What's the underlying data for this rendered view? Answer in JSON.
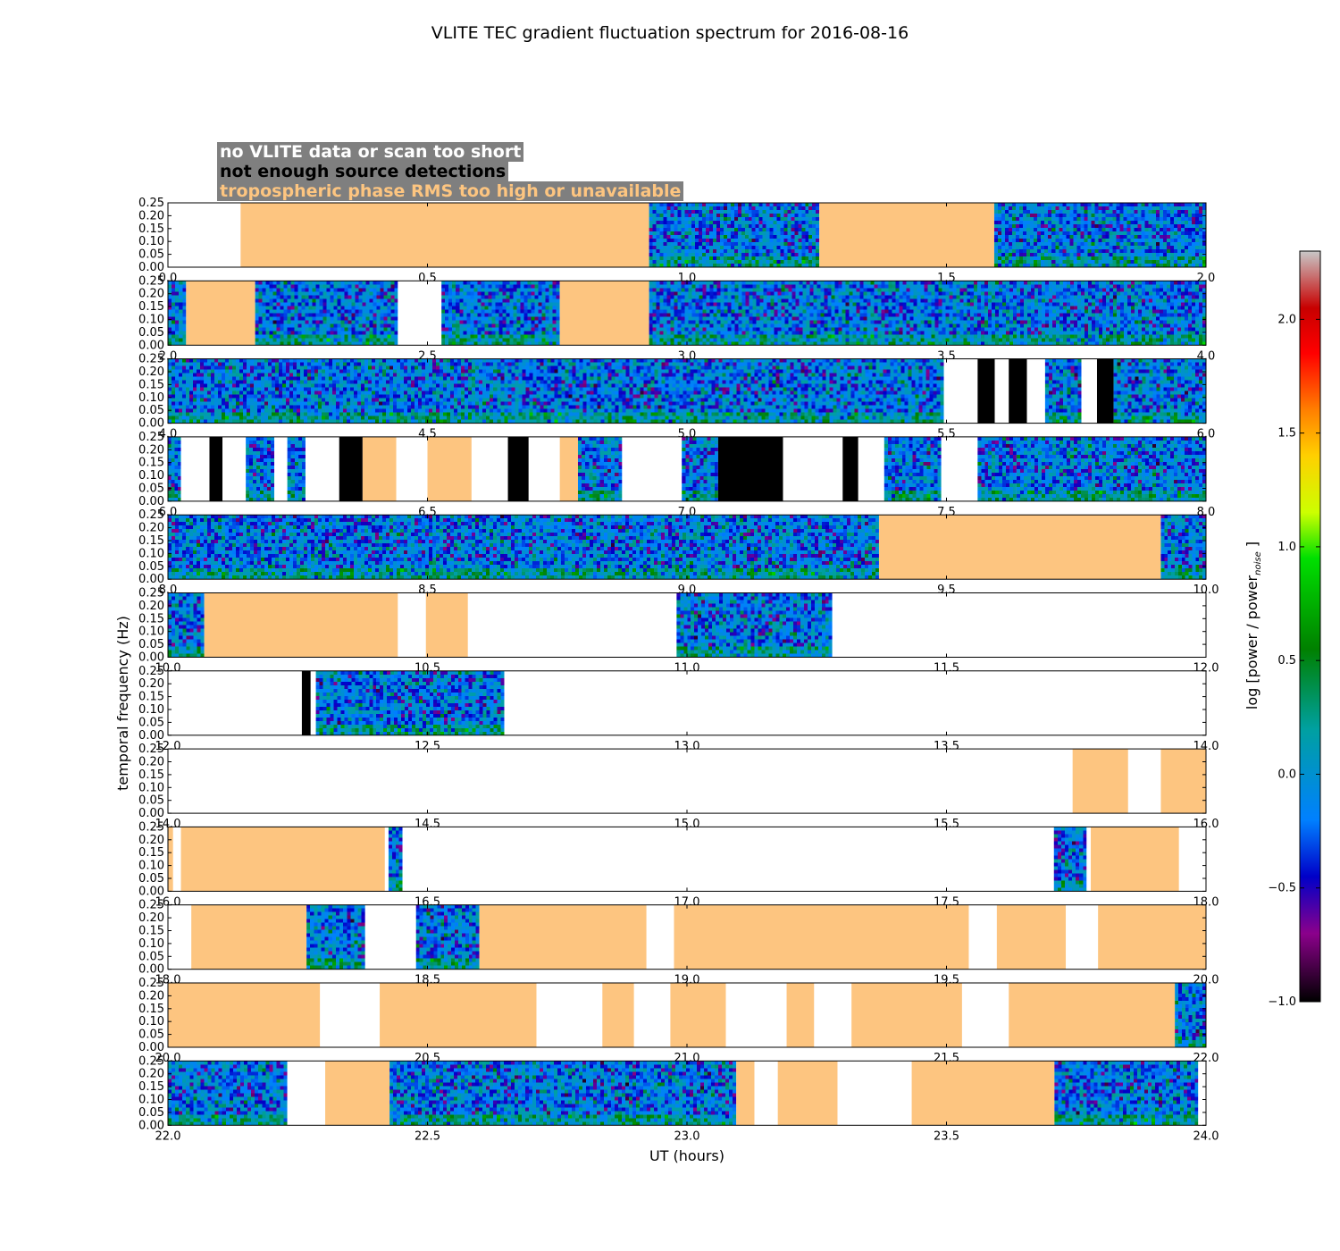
{
  "chart_data": {
    "type": "heatmap",
    "title": "VLITE TEC gradient fluctuation spectrum for 2016-08-16",
    "xlabel": "UT (hours)",
    "ylabel": "temporal frequency (Hz)",
    "ylim": [
      0,
      0.25
    ],
    "yticks": [
      "0.00",
      "0.05",
      "0.10",
      "0.15",
      "0.20",
      "0.25"
    ],
    "colorbar": {
      "label": "log [power / power",
      "label_subscript": "noise",
      "label_end": "]",
      "range": [
        -1.0,
        2.3
      ],
      "ticks": [
        "-1.0",
        "-0.5",
        "0.0",
        "0.5",
        "1.0",
        "1.5",
        "2.0"
      ],
      "tick_values": [
        -1.0,
        -0.5,
        0.0,
        0.5,
        1.0,
        1.5,
        2.0
      ],
      "colors": [
        "#000000",
        "#8b008b",
        "#0000c8",
        "#0080ff",
        "#00a0a0",
        "#008000",
        "#00e000",
        "#ccff00",
        "#ffd000",
        "#ff8000",
        "#ff0000",
        "#c80000",
        "#c8c8c8"
      ],
      "color_stops": [
        -1.0,
        -0.7,
        -0.45,
        -0.2,
        0.2,
        0.55,
        0.95,
        1.15,
        1.4,
        1.6,
        1.85,
        2.05,
        2.3
      ]
    },
    "legend": {
      "placement": "top-left",
      "entries": [
        {
          "label": "no VLITE data or scan too short",
          "color": "#ffffff"
        },
        {
          "label": "not enough source detections",
          "color": "#000000"
        },
        {
          "label": "tropospheric phase RMS too high or unavailable",
          "color": "#fdc580"
        }
      ]
    },
    "flag_colors": {
      "none": "#ffffff",
      "det": "#000000",
      "trop": "#fdc580"
    },
    "panels": [
      {
        "xlim": [
          0,
          2
        ],
        "xticks": [
          "0.0",
          "0.5",
          "1.0",
          "1.5",
          "2.0"
        ],
        "segments": [
          [
            0.0,
            0.14,
            "none"
          ],
          [
            0.14,
            0.927,
            "trop"
          ],
          [
            0.927,
            1.255,
            "data"
          ],
          [
            1.255,
            1.592,
            "trop"
          ],
          [
            1.592,
            2.0,
            "data"
          ]
        ]
      },
      {
        "xlim": [
          2,
          4
        ],
        "xticks": [
          "2.0",
          "2.5",
          "3.0",
          "3.5",
          "4.0"
        ],
        "segments": [
          [
            2.0,
            2.035,
            "data"
          ],
          [
            2.035,
            2.168,
            "trop"
          ],
          [
            2.168,
            2.443,
            "data"
          ],
          [
            2.443,
            2.527,
            "none"
          ],
          [
            2.527,
            2.755,
            "data"
          ],
          [
            2.755,
            2.927,
            "trop"
          ],
          [
            2.927,
            4.0,
            "data"
          ]
        ]
      },
      {
        "xlim": [
          4,
          6
        ],
        "xticks": [
          "4.0",
          "4.5",
          "5.0",
          "5.5",
          "6.0"
        ],
        "segments": [
          [
            4.0,
            5.495,
            "data"
          ],
          [
            5.495,
            5.56,
            "none"
          ],
          [
            5.56,
            5.593,
            "det"
          ],
          [
            5.593,
            5.62,
            "none"
          ],
          [
            5.62,
            5.655,
            "det"
          ],
          [
            5.655,
            5.69,
            "none"
          ],
          [
            5.69,
            5.76,
            "data"
          ],
          [
            5.76,
            5.79,
            "none"
          ],
          [
            5.79,
            5.822,
            "det"
          ],
          [
            5.822,
            6.0,
            "data"
          ]
        ]
      },
      {
        "xlim": [
          6,
          8
        ],
        "xticks": [
          "6.0",
          "6.5",
          "7.0",
          "7.5",
          "8.0"
        ],
        "segments": [
          [
            6.0,
            6.025,
            "data"
          ],
          [
            6.025,
            6.08,
            "none"
          ],
          [
            6.08,
            6.105,
            "det"
          ],
          [
            6.105,
            6.15,
            "none"
          ],
          [
            6.15,
            6.205,
            "data"
          ],
          [
            6.205,
            6.23,
            "none"
          ],
          [
            6.23,
            6.265,
            "data"
          ],
          [
            6.265,
            6.33,
            "none"
          ],
          [
            6.33,
            6.375,
            "det"
          ],
          [
            6.375,
            6.44,
            "trop"
          ],
          [
            6.44,
            6.5,
            "none"
          ],
          [
            6.5,
            6.585,
            "trop"
          ],
          [
            6.585,
            6.655,
            "none"
          ],
          [
            6.655,
            6.695,
            "det"
          ],
          [
            6.695,
            6.755,
            "none"
          ],
          [
            6.755,
            6.79,
            "trop"
          ],
          [
            6.79,
            6.875,
            "data"
          ],
          [
            6.875,
            6.99,
            "none"
          ],
          [
            6.99,
            7.06,
            "data"
          ],
          [
            7.06,
            7.185,
            "det"
          ],
          [
            7.185,
            7.3,
            "none"
          ],
          [
            7.3,
            7.33,
            "det"
          ],
          [
            7.33,
            7.38,
            "none"
          ],
          [
            7.38,
            7.49,
            "data"
          ],
          [
            7.49,
            7.56,
            "none"
          ],
          [
            7.56,
            7.635,
            "data"
          ],
          [
            7.635,
            8.0,
            "data"
          ]
        ]
      },
      {
        "xlim": [
          8,
          10
        ],
        "xticks": [
          "8.0",
          "8.5",
          "9.0",
          "9.5",
          "10.0"
        ],
        "segments": [
          [
            8.0,
            9.37,
            "data"
          ],
          [
            9.37,
            9.913,
            "trop"
          ],
          [
            9.913,
            10.0,
            "data"
          ]
        ]
      },
      {
        "xlim": [
          10,
          12
        ],
        "xticks": [
          "10.0",
          "10.5",
          "11.0",
          "11.5",
          "12.0"
        ],
        "segments": [
          [
            10.0,
            10.07,
            "data"
          ],
          [
            10.07,
            10.443,
            "trop"
          ],
          [
            10.443,
            10.497,
            "none"
          ],
          [
            10.497,
            10.578,
            "trop"
          ],
          [
            10.578,
            10.98,
            "none"
          ],
          [
            10.98,
            11.28,
            "data"
          ],
          [
            11.28,
            12.0,
            "none"
          ]
        ]
      },
      {
        "xlim": [
          12,
          14
        ],
        "xticks": [
          "12.0",
          "12.5",
          "13.0",
          "13.5",
          "14.0"
        ],
        "segments": [
          [
            12.0,
            12.258,
            "none"
          ],
          [
            12.258,
            12.275,
            "det"
          ],
          [
            12.275,
            12.285,
            "none"
          ],
          [
            12.285,
            12.648,
            "data"
          ],
          [
            12.648,
            14.0,
            "none"
          ]
        ]
      },
      {
        "xlim": [
          14,
          16
        ],
        "xticks": [
          "14.0",
          "14.5",
          "15.0",
          "15.5",
          "16.0"
        ],
        "segments": [
          [
            14.0,
            15.743,
            "none"
          ],
          [
            15.743,
            15.85,
            "trop"
          ],
          [
            15.85,
            15.913,
            "none"
          ],
          [
            15.913,
            16.0,
            "trop"
          ]
        ]
      },
      {
        "xlim": [
          16,
          18
        ],
        "xticks": [
          "16.0",
          "16.5",
          "17.0",
          "17.5",
          "18.0"
        ],
        "segments": [
          [
            16.0,
            16.01,
            "trop"
          ],
          [
            16.01,
            16.025,
            "none"
          ],
          [
            16.025,
            16.418,
            "trop"
          ],
          [
            16.418,
            16.425,
            "none"
          ],
          [
            16.425,
            16.452,
            "data"
          ],
          [
            16.452,
            17.707,
            "none"
          ],
          [
            17.707,
            17.77,
            "data"
          ],
          [
            17.77,
            17.778,
            "none"
          ],
          [
            17.778,
            17.948,
            "trop"
          ],
          [
            17.948,
            18.0,
            "none"
          ]
        ]
      },
      {
        "xlim": [
          18,
          20
        ],
        "xticks": [
          "18.0",
          "18.5",
          "19.0",
          "19.5",
          "20.0"
        ],
        "segments": [
          [
            18.0,
            18.045,
            "none"
          ],
          [
            18.045,
            18.267,
            "trop"
          ],
          [
            18.267,
            18.38,
            "data"
          ],
          [
            18.38,
            18.478,
            "none"
          ],
          [
            18.478,
            18.6,
            "data"
          ],
          [
            18.6,
            18.922,
            "trop"
          ],
          [
            18.922,
            18.975,
            "none"
          ],
          [
            18.975,
            19.543,
            "trop"
          ],
          [
            19.543,
            19.597,
            "none"
          ],
          [
            19.597,
            19.73,
            "trop"
          ],
          [
            19.73,
            19.792,
            "none"
          ],
          [
            19.792,
            20.0,
            "trop"
          ]
        ]
      },
      {
        "xlim": [
          20,
          22
        ],
        "xticks": [
          "20.0",
          "20.5",
          "21.0",
          "21.5",
          "22.0"
        ],
        "segments": [
          [
            20.0,
            20.293,
            "trop"
          ],
          [
            20.293,
            20.408,
            "none"
          ],
          [
            20.408,
            20.71,
            "trop"
          ],
          [
            20.71,
            20.837,
            "none"
          ],
          [
            20.837,
            20.898,
            "trop"
          ],
          [
            20.898,
            20.968,
            "none"
          ],
          [
            20.968,
            21.075,
            "trop"
          ],
          [
            21.075,
            21.192,
            "none"
          ],
          [
            21.192,
            21.245,
            "trop"
          ],
          [
            21.245,
            21.317,
            "none"
          ],
          [
            21.317,
            21.53,
            "trop"
          ],
          [
            21.53,
            21.62,
            "none"
          ],
          [
            21.62,
            21.94,
            "trop"
          ],
          [
            21.94,
            22.0,
            "data"
          ]
        ]
      },
      {
        "xlim": [
          22,
          24
        ],
        "xticks": [
          "22.0",
          "22.5",
          "23.0",
          "23.5",
          "24.0"
        ],
        "segments": [
          [
            22.0,
            22.23,
            "data"
          ],
          [
            22.23,
            22.303,
            "none"
          ],
          [
            22.303,
            22.427,
            "trop"
          ],
          [
            22.427,
            23.095,
            "data"
          ],
          [
            23.095,
            23.13,
            "trop"
          ],
          [
            23.13,
            23.175,
            "none"
          ],
          [
            23.175,
            23.29,
            "trop"
          ],
          [
            23.29,
            23.433,
            "none"
          ],
          [
            23.433,
            23.708,
            "trop"
          ],
          [
            23.708,
            23.985,
            "data"
          ],
          [
            23.985,
            24.0,
            "none"
          ]
        ]
      }
    ]
  }
}
